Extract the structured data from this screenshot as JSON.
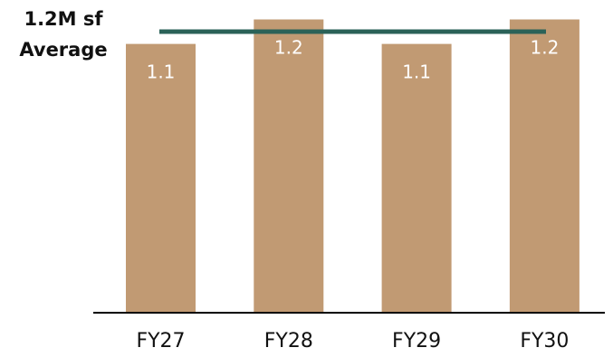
{
  "chart_data": {
    "type": "bar",
    "categories": [
      "FY27",
      "FY28",
      "FY29",
      "FY30"
    ],
    "values": [
      1.1,
      1.2,
      1.1,
      1.2
    ],
    "data_labels": [
      "1.1",
      "1.2",
      "1.1",
      "1.2"
    ],
    "title": "",
    "xlabel": "",
    "ylabel": "",
    "ylim": [
      0,
      1.25
    ],
    "grid": false,
    "legend": "none",
    "average_line": {
      "value": 1.15,
      "label_line1": "1.2M sf",
      "label_line2": "Average"
    },
    "colors": {
      "bar": "#c19a73",
      "average_line": "#2b6258",
      "axis": "#000000",
      "bar_label": "#ffffff"
    }
  }
}
